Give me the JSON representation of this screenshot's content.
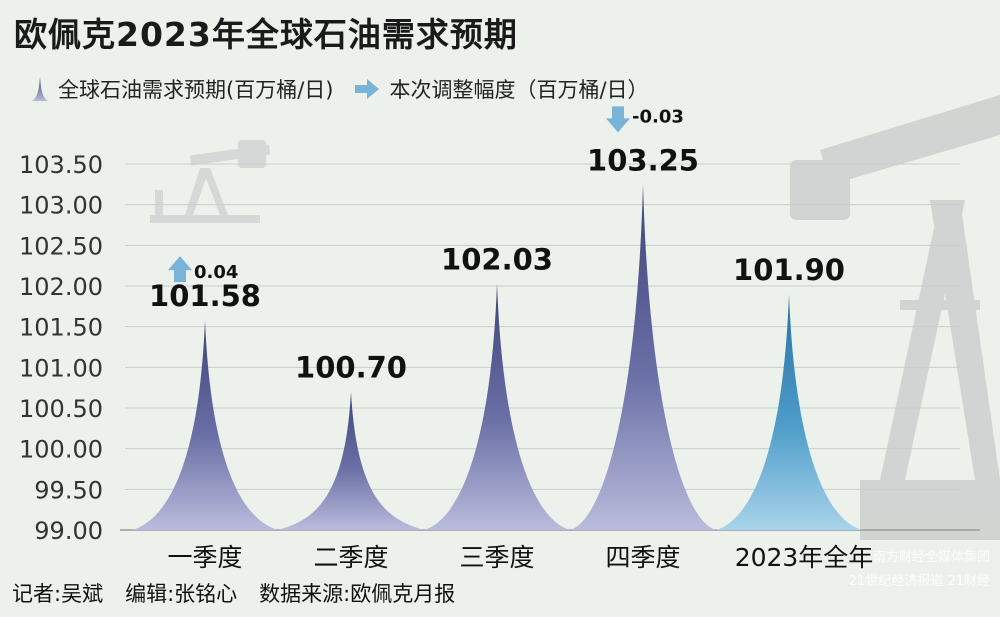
{
  "title": "欧佩克2023年全球石油需求预期",
  "legend": {
    "demand": "全球石油需求预期(百万桶/日)",
    "adjust": "本次调整幅度（百万桶/日）"
  },
  "chart_data": {
    "type": "area",
    "title": "欧佩克2023年全球石油需求预期",
    "categories": [
      "一季度",
      "二季度",
      "三季度",
      "四季度",
      "2023年全年"
    ],
    "series": [
      {
        "name": "全球石油需求预期(百万桶/日)",
        "values": [
          101.58,
          100.7,
          102.03,
          103.25,
          101.9
        ]
      }
    ],
    "value_labels": [
      "101.58",
      "100.70",
      "102.03",
      "103.25",
      "101.90"
    ],
    "adjustments": [
      {
        "category": "一季度",
        "direction": "up",
        "label": "0.04"
      },
      {
        "category": "四季度",
        "direction": "down",
        "label": "-0.03"
      }
    ],
    "yticks": [
      "99.00",
      "99.50",
      "100.00",
      "100.50",
      "101.00",
      "101.50",
      "102.00",
      "102.50",
      "103.00",
      "103.50"
    ],
    "ylim": [
      99.0,
      103.5
    ],
    "colors": {
      "quarter": "#5a5f95",
      "annual": "#3e8ec0",
      "arrow": "#7ab3d8"
    }
  },
  "footer": {
    "reporter": "记者:吴斌",
    "editor": "编辑:张铭心",
    "source": "数据来源:欧佩克月报"
  },
  "watermark": {
    "line1": "南方财经全媒体集团",
    "line2": "21世纪经济报道 21财经"
  }
}
